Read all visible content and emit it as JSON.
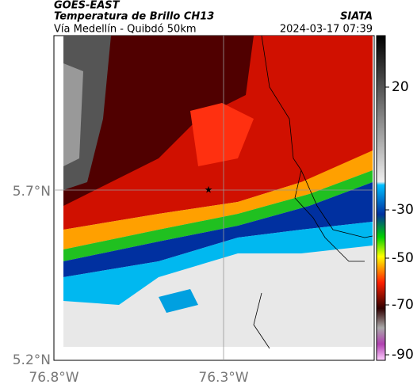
{
  "header": {
    "source": "GOES-EAST",
    "title": "Temperatura de Brillo CH13",
    "org": "SIATA",
    "subtitle": "Vía Medellín - Quibdó 50km",
    "timestamp": "2024-03-17 07:39"
  },
  "axes": {
    "lat_labels": [
      "5.7°N",
      "5.2°N"
    ],
    "lon_labels": [
      "76.8°W",
      "76.3°W"
    ]
  },
  "colorbar": {
    "ticks": [
      20,
      -30,
      -50,
      -70,
      -90
    ]
  }
}
